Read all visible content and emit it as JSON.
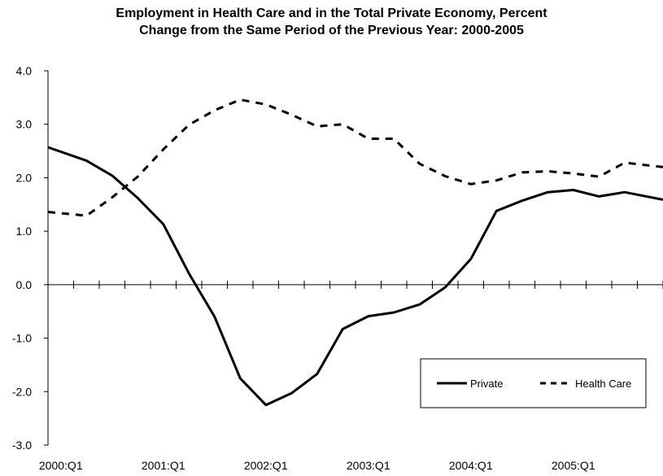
{
  "chart_data": {
    "type": "line",
    "title": "Employment in Health Care and in the Total Private Economy, Percent Change from the Same Period of the Previous Year:  2000-2005",
    "title_lines": [
      "Employment in Health Care and in the Total Private Economy, Percent",
      "Change from the Same Period of the Previous Year:  2000-2005"
    ],
    "xlabel": "",
    "ylabel": "",
    "ylim": [
      -3.0,
      4.0
    ],
    "y_ticks": [
      "4.0",
      "3.0",
      "2.0",
      "1.0",
      "0.0",
      "-1.0",
      "-2.0",
      "-3.0"
    ],
    "x_tick_labels": [
      "2000:Q1",
      "2001:Q1",
      "2002:Q1",
      "2003:Q1",
      "2004:Q1",
      "2005:Q1"
    ],
    "x": [
      "2000:Q1",
      "2000:Q2",
      "2000:Q3",
      "2000:Q4",
      "2001:Q1",
      "2001:Q2",
      "2001:Q3",
      "2001:Q4",
      "2002:Q1",
      "2002:Q2",
      "2002:Q3",
      "2002:Q4",
      "2003:Q1",
      "2003:Q2",
      "2003:Q3",
      "2003:Q4",
      "2004:Q1",
      "2004:Q2",
      "2004:Q3",
      "2004:Q4",
      "2005:Q1",
      "2005:Q2",
      "2005:Q3",
      "2005:Q4"
    ],
    "series": [
      {
        "name": "Private",
        "style": "solid",
        "color": "#000000",
        "values": [
          2.57,
          2.32,
          2.04,
          1.62,
          1.13,
          0.21,
          -0.6,
          -1.75,
          -2.25,
          -2.03,
          -1.67,
          -0.83,
          -0.59,
          -0.52,
          -0.37,
          -0.05,
          0.48,
          1.38,
          1.57,
          1.73,
          1.77,
          1.65,
          1.73,
          1.59
        ]
      },
      {
        "name": "Health Care",
        "style": "dashed",
        "color": "#000000",
        "values": [
          1.36,
          1.29,
          1.63,
          2.02,
          2.53,
          2.99,
          3.26,
          3.46,
          3.37,
          3.18,
          2.96,
          3.0,
          2.73,
          2.73,
          2.26,
          2.03,
          1.88,
          1.95,
          2.1,
          2.12,
          2.08,
          2.02,
          2.28,
          2.2
        ]
      }
    ],
    "grid": false,
    "legend_position": "lower-right"
  }
}
